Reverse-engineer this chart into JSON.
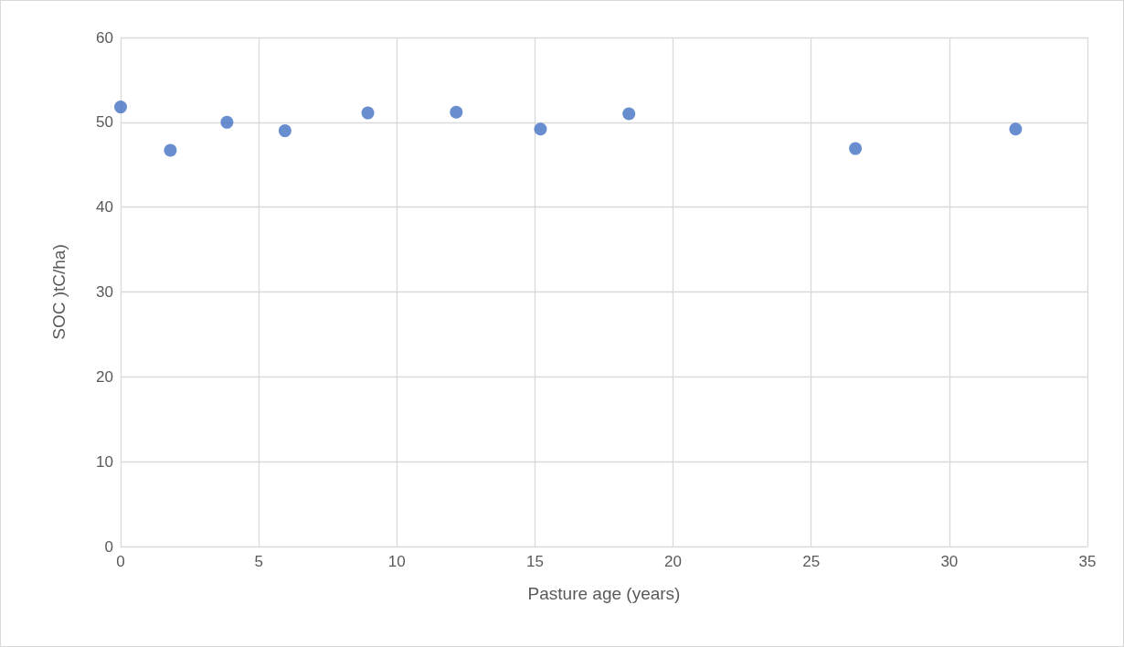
{
  "chart_data": {
    "type": "scatter",
    "xlabel": "Pasture age (years)",
    "ylabel": "SOC )tC/ha)",
    "x": [
      0,
      1.8,
      3.85,
      5.95,
      8.95,
      12.15,
      15.2,
      18.4,
      26.6,
      32.4
    ],
    "values": [
      51.8,
      46.7,
      50.0,
      49.0,
      51.1,
      51.2,
      49.2,
      51.0,
      46.9,
      49.2
    ],
    "color": "#4472c4",
    "marker": "circle",
    "xlim": [
      0,
      35
    ],
    "xticks": [
      0,
      5,
      10,
      15,
      20,
      25,
      30,
      35
    ],
    "ylim": [
      0,
      60
    ],
    "yticks": [
      0,
      10,
      20,
      30,
      40,
      50,
      60
    ],
    "grid": true
  }
}
